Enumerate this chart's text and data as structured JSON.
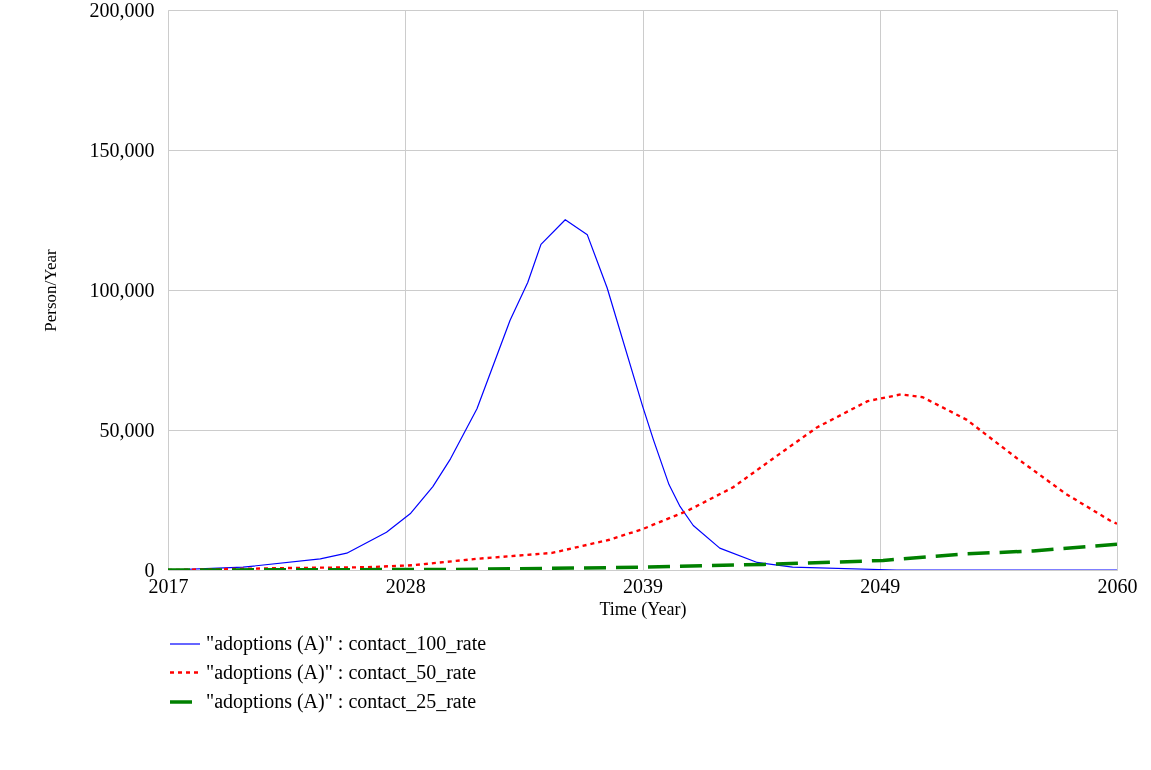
{
  "chart_data": {
    "type": "line",
    "xlabel": "Time (Year)",
    "ylabel": "Person/Year",
    "xlim": [
      2017,
      2060
    ],
    "xticks": [
      2017,
      {
        "value": 2027.75,
        "label": "2028"
      },
      {
        "value": 2038.5,
        "label": "2039"
      },
      {
        "value": 2049.25,
        "label": "2049"
      },
      2060
    ],
    "ylim": [
      0,
      200000
    ],
    "yticks": [
      0,
      {
        "value": 50000,
        "label": "50,000"
      },
      {
        "value": 100000,
        "label": "100,000"
      },
      {
        "value": 150000,
        "label": "150,000"
      },
      {
        "value": 200000,
        "label": "200,000"
      }
    ],
    "grid": true,
    "legend": "bottom",
    "marker": "none",
    "series": [
      {
        "name": "\"adoptions (A)\" : contact_100_rate",
        "color": "#0000ff",
        "line_style": "solid",
        "x": [
          2017,
          2020.4,
          2023.9,
          2025.1,
          2026.9,
          2028.0,
          2029.0,
          2029.8,
          2031.0,
          2032.5,
          2033.3,
          2033.9,
          2035.0,
          2036.0,
          2036.9,
          2038.5,
          2039.0,
          2039.7,
          2040.2,
          2040.8,
          2042.0,
          2043.7,
          2045.3,
          2050,
          2055,
          2060
        ],
        "values": [
          0,
          1000,
          4000,
          6000,
          13500,
          20300,
          29800,
          39700,
          57600,
          89200,
          102700,
          116300,
          125100,
          119700,
          100700,
          58600,
          46400,
          30500,
          22700,
          15900,
          7800,
          2700,
          1000,
          0,
          0,
          0
        ]
      },
      {
        "name": "\"adoptions (A)\" : contact_50_rate",
        "color": "#ff0000",
        "line_style": "dotted",
        "x": [
          2017,
          2022.4,
          2026.0,
          2028.1,
          2031.0,
          2034.4,
          2037.0,
          2038.5,
          2040.5,
          2042.6,
          2044.7,
          2046.4,
          2048.7,
          2050.2,
          2051.2,
          2053.2,
          2055.5,
          2057.7,
          2059.7,
          2060
        ],
        "values": [
          0,
          700,
          1000,
          1700,
          4000,
          6100,
          10800,
          14600,
          21000,
          29500,
          41400,
          50900,
          60300,
          62700,
          61700,
          53600,
          39700,
          27100,
          17600,
          16500
        ]
      },
      {
        "name": "\"adoptions (A)\" : contact_25_rate",
        "color": "#008000",
        "line_style": "dashed",
        "x": [
          2017,
          2030,
          2038.5,
          2044,
          2049.4,
          2053.2,
          2056.2,
          2060
        ],
        "values": [
          0,
          200,
          1000,
          2000,
          3400,
          5800,
          6800,
          9200
        ]
      }
    ]
  }
}
